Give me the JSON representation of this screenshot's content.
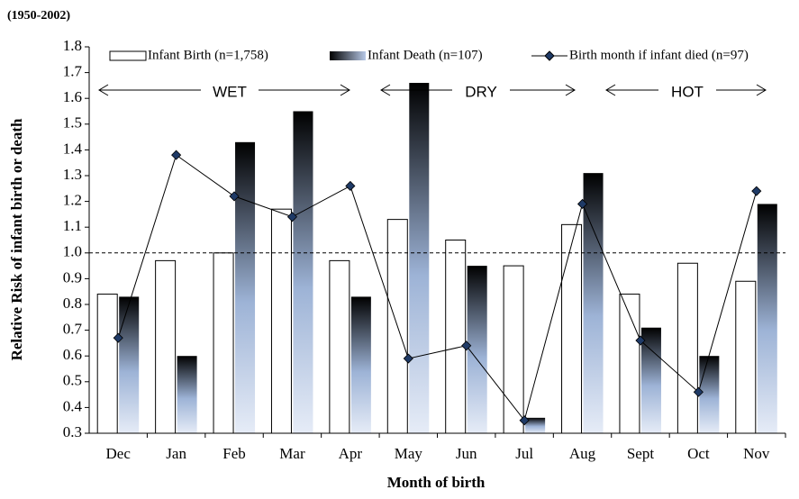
{
  "chart_data": {
    "type": "bar",
    "title": "(1950-2002)",
    "x_label": "Month of birth",
    "y_label": "Relative Risk of infant birth or death",
    "categories": [
      "Dec",
      "Jan",
      "Feb",
      "Mar",
      "Apr",
      "May",
      "Jun",
      "Jul",
      "Aug",
      "Sept",
      "Oct",
      "Nov"
    ],
    "series": [
      {
        "name": "Infant Birth (n=1,758)",
        "type": "bar",
        "color": "#ffffff",
        "values": [
          0.84,
          0.97,
          1.0,
          1.17,
          0.97,
          1.13,
          1.05,
          0.95,
          1.11,
          0.84,
          0.96,
          0.89
        ]
      },
      {
        "name": "Infant Death (n=107)",
        "type": "bar",
        "color": "#000000",
        "values": [
          0.83,
          0.6,
          1.43,
          1.55,
          0.83,
          1.66,
          0.95,
          0.36,
          1.31,
          0.71,
          0.6,
          1.19
        ]
      },
      {
        "name": "Birth month if infant died (n=97)",
        "type": "line",
        "color": "#000000",
        "values": [
          0.67,
          1.38,
          1.22,
          1.14,
          1.26,
          0.59,
          0.64,
          0.35,
          1.19,
          0.66,
          0.46,
          1.24
        ]
      }
    ],
    "ylim": [
      0.3,
      1.8
    ],
    "yticks": [
      {
        "value": 0.3,
        "label": "0.3"
      },
      {
        "value": 0.4,
        "label": "0.4"
      },
      {
        "value": 0.5,
        "label": "0.5"
      },
      {
        "value": 0.6,
        "label": "0.6"
      },
      {
        "value": 0.7,
        "label": "0.7"
      },
      {
        "value": 0.8,
        "label": "0.8"
      },
      {
        "value": 0.9,
        "label": "0.9"
      },
      {
        "value": 1.0,
        "label": "1.0"
      },
      {
        "value": 1.1,
        "label": "1.1"
      },
      {
        "value": 1.2,
        "label": "1.2"
      },
      {
        "value": 1.3,
        "label": "1.3"
      },
      {
        "value": 1.4,
        "label": "1.4"
      },
      {
        "value": 1.5,
        "label": "1.5"
      },
      {
        "value": 1.6,
        "label": "1.6"
      },
      {
        "value": 1.7,
        "label": "1.7"
      },
      {
        "value": 1.8,
        "label": "1.8"
      }
    ],
    "reference_line": 1.0,
    "annotations": [
      "WET",
      "DRY",
      "HOT"
    ],
    "grid": false
  }
}
